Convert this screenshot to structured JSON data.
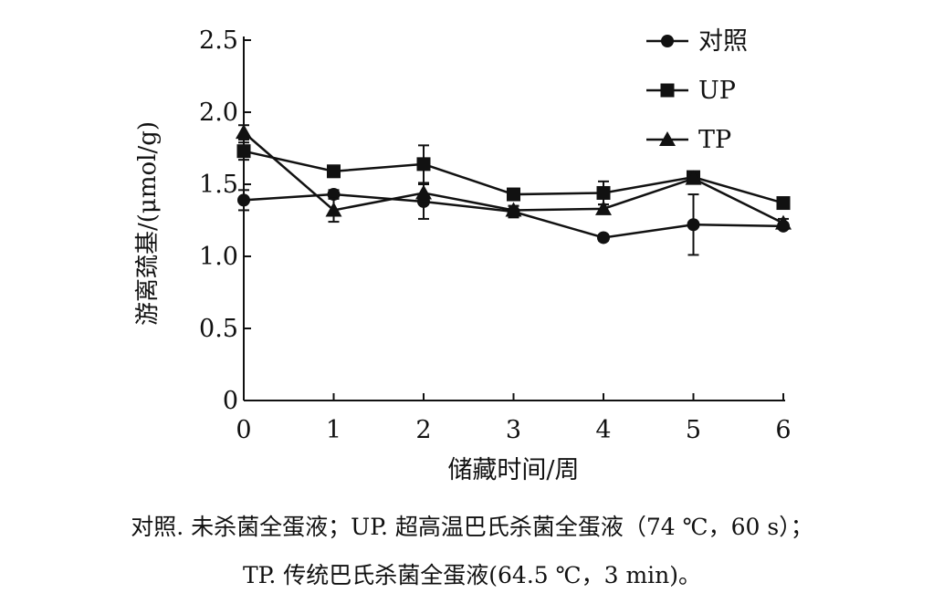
{
  "chart_data": {
    "type": "line",
    "xlabel": "储藏时间/周",
    "ylabel": "游离巯基/(μmol/g)",
    "x": [
      0,
      1,
      2,
      3,
      4,
      5,
      6
    ],
    "xlim": [
      0,
      6
    ],
    "ylim": [
      0,
      2.5
    ],
    "xticks": [
      "0",
      "1",
      "2",
      "3",
      "4",
      "5",
      "6"
    ],
    "yticks": [
      "0",
      "0.5",
      "1.0",
      "1.5",
      "2.0",
      "2.5"
    ],
    "grid": false,
    "legend_position": "top-right",
    "series": [
      {
        "name": "对照",
        "marker": "circle",
        "values": [
          1.39,
          1.43,
          1.38,
          1.31,
          1.13,
          1.22,
          1.21
        ],
        "errors": [
          0.07,
          0.03,
          0.12,
          0.04,
          0.02,
          0.21,
          0.02
        ]
      },
      {
        "name": "UP",
        "marker": "square",
        "values": [
          1.73,
          1.59,
          1.64,
          1.43,
          1.44,
          1.55,
          1.37
        ],
        "errors": [
          0.06,
          0.04,
          0.13,
          0.04,
          0.08,
          0.03,
          0.03
        ]
      },
      {
        "name": "TP",
        "marker": "triangle",
        "values": [
          1.86,
          1.32,
          1.44,
          1.32,
          1.33,
          1.54,
          1.23
        ],
        "errors": [
          0.05,
          0.08,
          0.06,
          0.03,
          0.03,
          0.03,
          0.03
        ]
      }
    ]
  },
  "caption": {
    "line1": "对照. 未杀菌全蛋液；UP. 超高温巴氏杀菌全蛋液（74 ℃，60 s）；",
    "line2": "TP. 传统巴氏杀菌全蛋液(64.5 ℃，3 min)。"
  }
}
